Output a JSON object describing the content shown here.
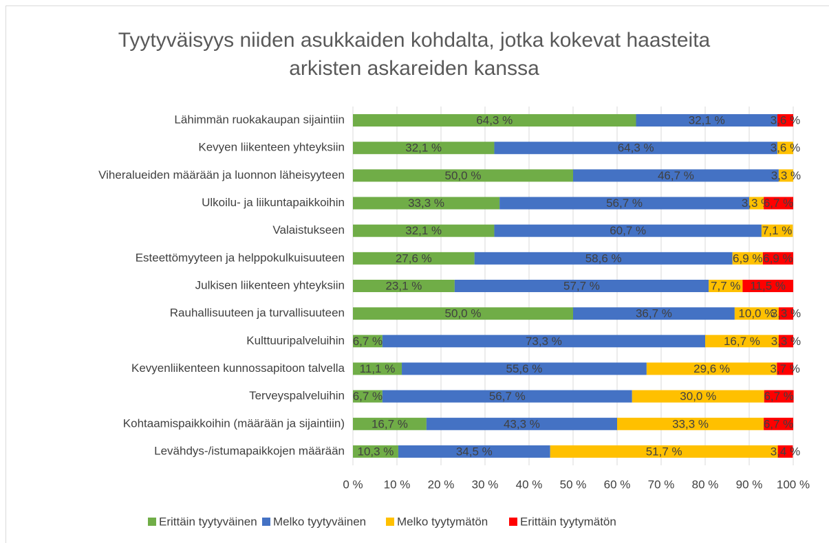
{
  "chart_data": {
    "type": "stacked-bar-horizontal",
    "title": "Tyytyväisyys niiden asukkaiden kohdalta, jotka kokevat haasteita arkisten askareiden kanssa",
    "categories": [
      "Lähimmän ruokakaupan sijaintiin",
      "Kevyen liikenteen yhteyksiin",
      "Viheralueiden määrään ja luonnon läheisyyteen",
      "Ulkoilu- ja liikuntapaikkoihin",
      "Valaistukseen",
      "Esteettömyyteen ja helppokulkuisuuteen",
      "Julkisen liikenteen yhteyksiin",
      "Rauhallisuuteen ja turvallisuuteen",
      "Kulttuuripalveluihin",
      "Kevyenliikenteen kunnossapitoon talvella",
      "Terveyspalveluihin",
      "Kohtaamispaikkoihin (määrään ja sijaintiin)",
      "Levähdys-/istumapaikkojen määrään"
    ],
    "series": [
      {
        "name": "Erittäin tyytyväinen",
        "color": "#70ad47",
        "values": [
          64.3,
          32.1,
          50.0,
          33.3,
          32.1,
          27.6,
          23.1,
          50.0,
          6.7,
          11.1,
          6.7,
          16.7,
          10.3
        ],
        "value_labels": [
          "64,3 %",
          "32,1 %",
          "50,0 %",
          "33,3 %",
          "32,1 %",
          "27,6 %",
          "23,1 %",
          "50,0 %",
          "6,7 %",
          "11,1 %",
          "6,7 %",
          "16,7 %",
          "10,3 %"
        ]
      },
      {
        "name": "Melko tyytyväinen",
        "color": "#4472c4",
        "values": [
          32.1,
          64.3,
          46.7,
          56.7,
          60.7,
          58.6,
          57.7,
          36.7,
          73.3,
          55.6,
          56.7,
          43.3,
          34.5
        ],
        "value_labels": [
          "32,1 %",
          "64,3 %",
          "46,7 %",
          "56,7 %",
          "60,7 %",
          "58,6 %",
          "57,7 %",
          "36,7 %",
          "73,3 %",
          "55,6 %",
          "56,7 %",
          "43,3 %",
          "34,5 %"
        ]
      },
      {
        "name": "Melko tyytymätön",
        "color": "#ffc000",
        "values": [
          null,
          3.6,
          3.3,
          3.3,
          7.1,
          6.9,
          7.7,
          10.0,
          16.7,
          29.6,
          30.0,
          33.3,
          51.7
        ],
        "value_labels": [
          null,
          "3,6 %",
          "3,3 %",
          "3,3 %",
          "7,1 %",
          "6,9 %",
          "7,7 %",
          "10,0 %",
          "16,7 %",
          "29,6 %",
          "30,0 %",
          "33,3 %",
          "51,7 %"
        ]
      },
      {
        "name": "Erittäin tyytymätön",
        "color": "#ff0000",
        "values": [
          3.6,
          null,
          null,
          6.7,
          null,
          6.9,
          11.5,
          3.3,
          3.3,
          3.7,
          6.7,
          6.7,
          3.4
        ],
        "value_labels": [
          "3,6 %",
          null,
          null,
          "6,7 %",
          null,
          "6,9 %",
          "11,5 %",
          "3,3 %",
          "3,3 %",
          "3,7 %",
          "6,7 %",
          "6,7 %",
          "3,4 %"
        ]
      }
    ],
    "xlim": [
      0,
      100
    ],
    "xticks": [
      {
        "value": 0,
        "label": "0 %"
      },
      {
        "value": 10,
        "label": "10 %"
      },
      {
        "value": 20,
        "label": "20 %"
      },
      {
        "value": 30,
        "label": "30 %"
      },
      {
        "value": 40,
        "label": "40 %"
      },
      {
        "value": 50,
        "label": "50 %"
      },
      {
        "value": 60,
        "label": "60 %"
      },
      {
        "value": 70,
        "label": "70 %"
      },
      {
        "value": 80,
        "label": "80 %"
      },
      {
        "value": 90,
        "label": "90 %"
      },
      {
        "value": 100,
        "label": "100 %"
      }
    ],
    "grid": true,
    "legend": "bottom"
  }
}
